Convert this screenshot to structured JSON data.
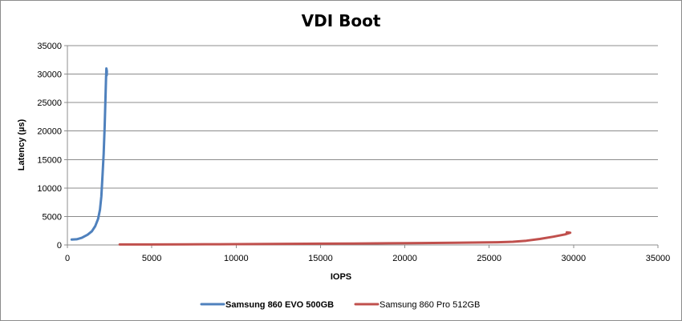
{
  "chart_data": {
    "type": "line",
    "title": "VDI Boot",
    "xlabel": "IOPS",
    "ylabel": "Latency (µs)",
    "xlim": [
      0,
      35000
    ],
    "ylim": [
      0,
      35000
    ],
    "xticks": [
      0,
      5000,
      10000,
      15000,
      20000,
      25000,
      30000,
      35000
    ],
    "yticks": [
      0,
      5000,
      10000,
      15000,
      20000,
      25000,
      30000,
      35000
    ],
    "xtick_labels": [
      "0",
      "5000",
      "10000",
      "15000",
      "20000",
      "25000",
      "30000",
      "35000"
    ],
    "ytick_labels": [
      "0",
      "5000",
      "10000",
      "15000",
      "20000",
      "25000",
      "30000",
      "35000"
    ],
    "grid": "horizontal",
    "legend_position": "bottom",
    "series": [
      {
        "name": "Samsung 860 EVO 500GB",
        "color": "#4f81bd",
        "points": [
          [
            250,
            950
          ],
          [
            550,
            1000
          ],
          [
            850,
            1250
          ],
          [
            1200,
            1800
          ],
          [
            1450,
            2400
          ],
          [
            1650,
            3300
          ],
          [
            1820,
            4600
          ],
          [
            1930,
            6200
          ],
          [
            2010,
            8500
          ],
          [
            2080,
            12000
          ],
          [
            2150,
            16000
          ],
          [
            2210,
            21000
          ],
          [
            2260,
            26000
          ],
          [
            2290,
            29500
          ],
          [
            2310,
            31000
          ],
          [
            2340,
            30500
          ],
          [
            2330,
            29800
          ]
        ]
      },
      {
        "name": "Samsung 860 Pro 512GB",
        "color": "#c0504d",
        "points": [
          [
            3100,
            80
          ],
          [
            5000,
            90
          ],
          [
            7000,
            110
          ],
          [
            9000,
            130
          ],
          [
            11000,
            160
          ],
          [
            13000,
            190
          ],
          [
            15000,
            220
          ],
          [
            17000,
            260
          ],
          [
            19000,
            300
          ],
          [
            21000,
            340
          ],
          [
            23000,
            390
          ],
          [
            24500,
            440
          ],
          [
            25500,
            480
          ],
          [
            26400,
            560
          ],
          [
            27200,
            750
          ],
          [
            28000,
            1050
          ],
          [
            28800,
            1450
          ],
          [
            29500,
            1850
          ],
          [
            29800,
            2150
          ],
          [
            29600,
            2200
          ]
        ]
      }
    ]
  }
}
